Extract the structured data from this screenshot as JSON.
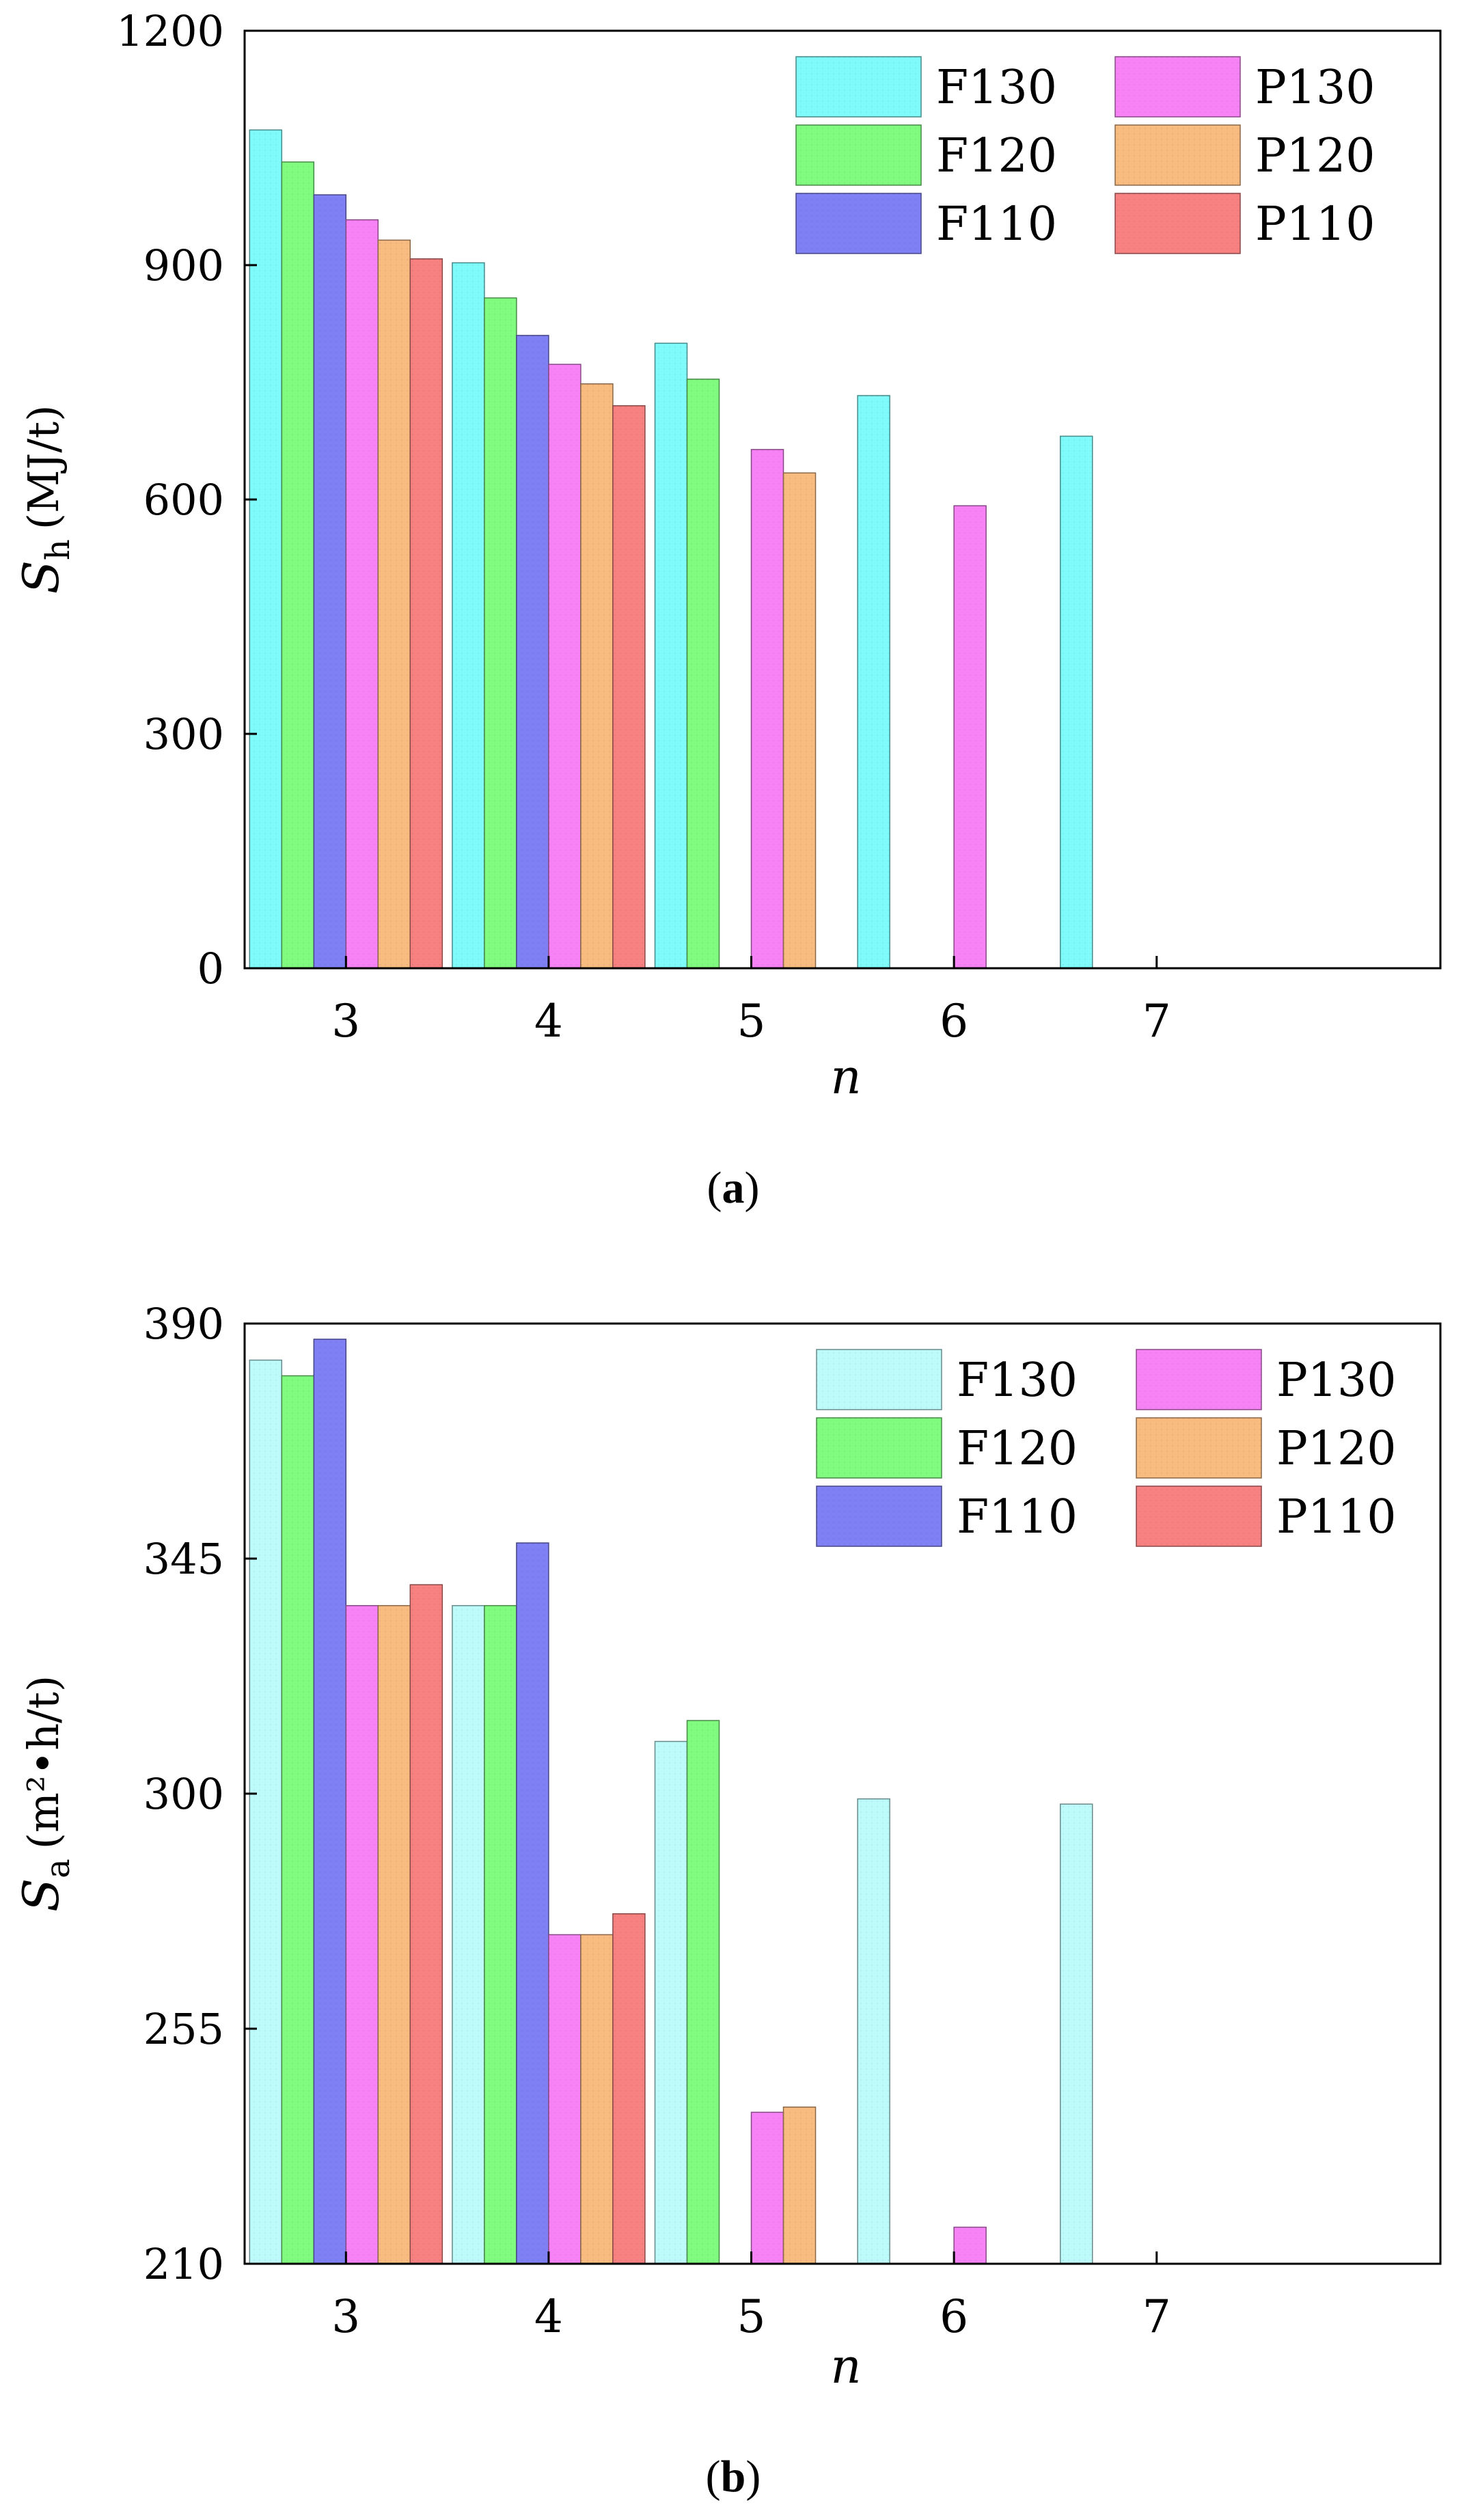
{
  "chart_data": [
    {
      "type": "bar",
      "panel_label": "a",
      "xlabel": "n",
      "ylabel_symbol": "S",
      "ylabel_subscript": "h",
      "ylabel_unit": "(MJ/t)",
      "categories": [
        "3",
        "4",
        "5",
        "6",
        "7"
      ],
      "ylim": [
        0,
        1200
      ],
      "yticks": [
        "0",
        "300",
        "600",
        "900",
        "1200"
      ],
      "legend_position": "top-right",
      "series": [
        {
          "name": "F130",
          "color": "#7ffbfb",
          "values": [
            1073,
            903,
            800,
            733,
            681
          ]
        },
        {
          "name": "F120",
          "color": "#80fb80",
          "values": [
            1032,
            858,
            754,
            null,
            null
          ]
        },
        {
          "name": "F110",
          "color": "#8080f5",
          "values": [
            990,
            810,
            null,
            null,
            null
          ]
        },
        {
          "name": "P130",
          "color": "#f782f5",
          "values": [
            958,
            773,
            664,
            592,
            null
          ]
        },
        {
          "name": "P120",
          "color": "#f9bc80",
          "values": [
            932,
            748,
            634,
            null,
            null
          ]
        },
        {
          "name": "P110",
          "color": "#f78080",
          "values": [
            908,
            720,
            null,
            null,
            null
          ]
        }
      ]
    },
    {
      "type": "bar",
      "panel_label": "b",
      "xlabel": "n",
      "ylabel_symbol": "S",
      "ylabel_subscript": "a",
      "ylabel_unit": "(m²•h/t)",
      "categories": [
        "3",
        "4",
        "5",
        "6",
        "7"
      ],
      "ylim": [
        210,
        390
      ],
      "yticks": [
        "210",
        "255",
        "300",
        "345",
        "390"
      ],
      "legend_position": "top-right",
      "series": [
        {
          "name": "F130",
          "color": "#bdfbfb",
          "values": [
            383,
            336,
            310,
            299,
            298
          ]
        },
        {
          "name": "F120",
          "color": "#80fb80",
          "values": [
            380,
            336,
            314,
            null,
            null
          ]
        },
        {
          "name": "F110",
          "color": "#8080f5",
          "values": [
            387,
            348,
            null,
            null,
            null
          ]
        },
        {
          "name": "P130",
          "color": "#f782f5",
          "values": [
            336,
            273,
            239,
            217,
            null
          ]
        },
        {
          "name": "P120",
          "color": "#f9bc80",
          "values": [
            336,
            273,
            240,
            null,
            null
          ]
        },
        {
          "name": "P110",
          "color": "#f78080",
          "values": [
            340,
            277,
            null,
            null,
            null
          ]
        }
      ]
    }
  ]
}
